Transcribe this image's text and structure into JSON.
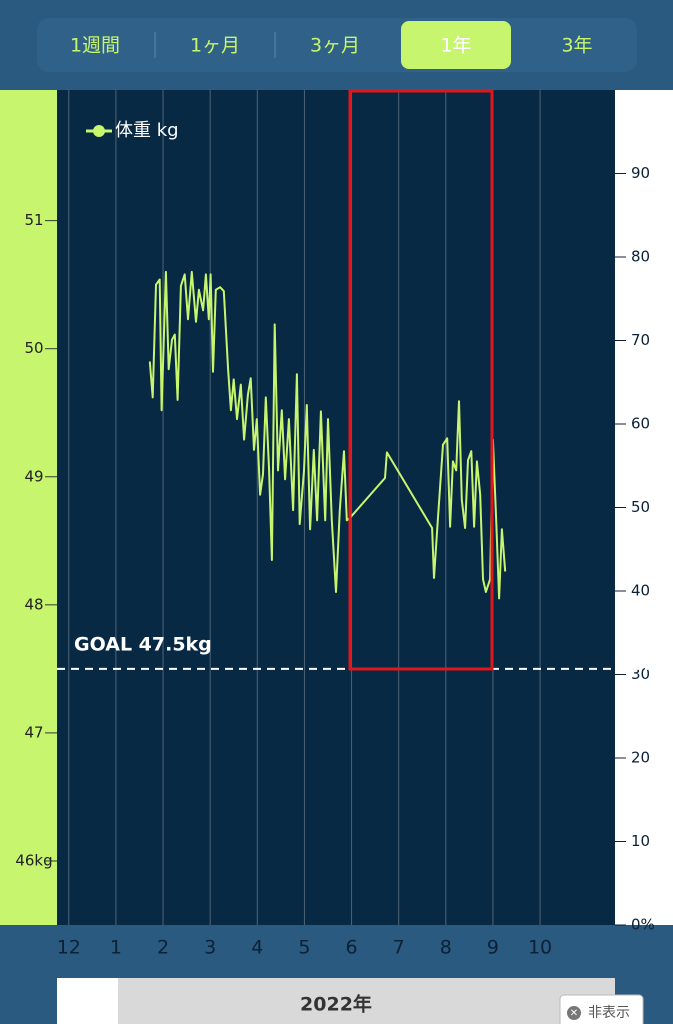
{
  "tabs": [
    "1週間",
    "1ヶ月",
    "3ヶ月",
    "1年",
    "3年"
  ],
  "selected_tab": "1年",
  "year_label": "2022年",
  "hide_button": "非表示",
  "chart_data": {
    "type": "line",
    "x": [
      1.72,
      1.78,
      1.85,
      1.93,
      1.97,
      2.06,
      2.12,
      2.19,
      2.25,
      2.31,
      2.38,
      2.46,
      2.53,
      2.61,
      2.7,
      2.76,
      2.85,
      2.91,
      2.97,
      3.01,
      3.06,
      3.12,
      3.21,
      3.29,
      3.38,
      3.44,
      3.5,
      3.57,
      3.65,
      3.72,
      3.8,
      3.86,
      3.93,
      3.99,
      4.06,
      4.12,
      4.18,
      4.25,
      4.31,
      4.37,
      4.44,
      4.52,
      4.59,
      4.67,
      4.76,
      4.84,
      4.9,
      4.99,
      5.05,
      5.12,
      5.2,
      5.27,
      5.35,
      5.44,
      5.5,
      5.58,
      5.67,
      5.75,
      5.84,
      5.9,
      5.97,
      6.71,
      6.75,
      7.71,
      7.75,
      7.83,
      7.94,
      8.03,
      8.09,
      8.15,
      8.22,
      8.28,
      8.34,
      8.41,
      8.47,
      8.54,
      8.6,
      8.66,
      8.73,
      8.79,
      8.85,
      8.94,
      9.0,
      9.07,
      9.13,
      9.19,
      9.26
    ],
    "series": [
      {
        "name": "体重 kg",
        "color": "#c8f56e",
        "values": [
          49.9,
          49.62,
          50.5,
          50.54,
          49.52,
          50.6,
          49.84,
          50.07,
          50.11,
          49.6,
          50.49,
          50.58,
          50.23,
          50.6,
          50.21,
          50.46,
          50.3,
          50.58,
          50.23,
          50.58,
          49.82,
          50.46,
          50.48,
          50.45,
          49.84,
          49.52,
          49.76,
          49.45,
          49.72,
          49.29,
          49.64,
          49.77,
          49.21,
          49.45,
          48.86,
          49.02,
          49.62,
          49.05,
          48.35,
          50.19,
          49.05,
          49.52,
          48.98,
          49.45,
          48.74,
          49.8,
          48.63,
          49.05,
          49.56,
          48.59,
          49.21,
          48.66,
          49.51,
          48.66,
          49.45,
          48.66,
          48.1,
          48.74,
          49.2,
          48.66,
          48.68,
          48.99,
          49.19,
          48.6,
          48.21,
          48.66,
          49.25,
          49.3,
          48.61,
          49.12,
          49.05,
          49.59,
          48.82,
          48.6,
          49.13,
          49.2,
          48.61,
          49.12,
          48.86,
          48.2,
          48.1,
          48.2,
          49.29,
          48.66,
          48.05,
          48.59,
          48.26
        ]
      }
    ],
    "xlim": [
      -0.25,
      11.59
    ],
    "xticks": [
      {
        "value": 0,
        "label": "12"
      },
      {
        "value": 1,
        "label": "1"
      },
      {
        "value": 2,
        "label": "2"
      },
      {
        "value": 3,
        "label": "3"
      },
      {
        "value": 4,
        "label": "4"
      },
      {
        "value": 5,
        "label": "5"
      },
      {
        "value": 6,
        "label": "6"
      },
      {
        "value": 7,
        "label": "7"
      },
      {
        "value": 8,
        "label": "8"
      },
      {
        "value": 9,
        "label": "9"
      },
      {
        "value": 10,
        "label": "10"
      }
    ],
    "ylim": [
      45.5,
      52.02
    ],
    "yticks": [
      {
        "value": 46,
        "label": "46kg"
      },
      47,
      48,
      49,
      50,
      51
    ],
    "y2lim": [
      0,
      100
    ],
    "y2ticks": [
      {
        "value": 0,
        "label": "0%"
      },
      10,
      20,
      30,
      40,
      50,
      60,
      70,
      80,
      90
    ],
    "goal": {
      "label": "GOAL 47.5kg",
      "value": 47.5
    },
    "grid": true
  }
}
